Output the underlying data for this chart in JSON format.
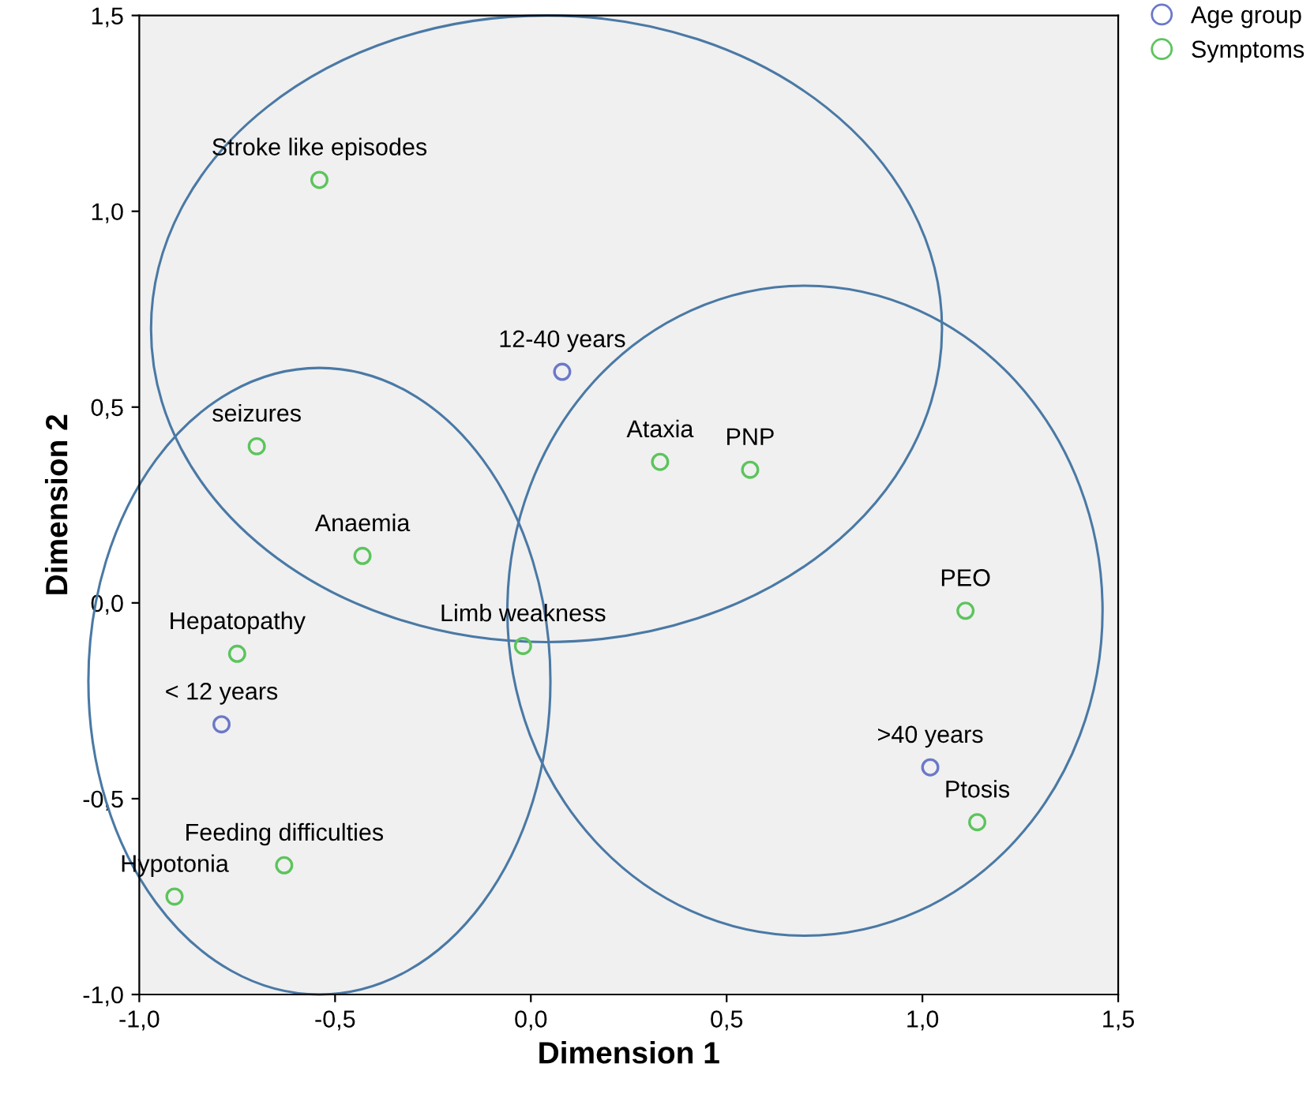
{
  "chart_data": {
    "type": "scatter",
    "xlabel": "Dimension 1",
    "ylabel": "Dimension 2",
    "xlim": [
      -1.0,
      1.5
    ],
    "ylim": [
      -1.0,
      1.5
    ],
    "xticks": [
      {
        "value": -1.0,
        "label": "-1,0"
      },
      {
        "value": -0.5,
        "label": "-0,5"
      },
      {
        "value": 0.0,
        "label": "0,0"
      },
      {
        "value": 0.5,
        "label": "0,5"
      },
      {
        "value": 1.0,
        "label": "1,0"
      },
      {
        "value": 1.5,
        "label": "1,5"
      }
    ],
    "yticks": [
      {
        "value": -1.0,
        "label": "-1,0"
      },
      {
        "value": -0.5,
        "label": "-0,5"
      },
      {
        "value": 0.0,
        "label": "0,0"
      },
      {
        "value": 0.5,
        "label": "0,5"
      },
      {
        "value": 1.0,
        "label": "1,0"
      },
      {
        "value": 1.5,
        "label": "1,5"
      }
    ],
    "grid": false,
    "legend": "top right",
    "marker": "circle",
    "series": [
      {
        "name": "Age group",
        "color": "#6b78c8",
        "x": [
          0.08,
          -0.79,
          1.02
        ],
        "values": [
          0.59,
          -0.31,
          -0.42
        ]
      },
      {
        "name": "Symptoms",
        "color": "#5cc45c",
        "x": [
          -0.54,
          -0.7,
          0.33,
          0.56,
          -0.43,
          1.11,
          -0.02,
          -0.75,
          1.14,
          -0.63,
          -0.91
        ],
        "values": [
          1.08,
          0.4,
          0.36,
          0.34,
          0.12,
          -0.02,
          -0.11,
          -0.13,
          -0.56,
          -0.67,
          -0.75
        ]
      }
    ],
    "annotations": [
      {
        "text": "12-40 years",
        "x": 0.08,
        "y": 0.59
      },
      {
        "text": "< 12 years",
        "x": -0.79,
        "y": -0.31
      },
      {
        "text": ">40 years",
        "x": 1.02,
        "y": -0.42
      },
      {
        "text": "Stroke like episodes",
        "x": -0.54,
        "y": 1.08
      },
      {
        "text": "seizures",
        "x": -0.7,
        "y": 0.4
      },
      {
        "text": "Ataxia",
        "x": 0.33,
        "y": 0.36
      },
      {
        "text": "PNP",
        "x": 0.56,
        "y": 0.34
      },
      {
        "text": "Anaemia",
        "x": -0.43,
        "y": 0.12
      },
      {
        "text": "PEO",
        "x": 1.11,
        "y": -0.02
      },
      {
        "text": "Limb weakness",
        "x": -0.02,
        "y": -0.11
      },
      {
        "text": "Hepatopathy",
        "x": -0.75,
        "y": -0.13
      },
      {
        "text": "Ptosis",
        "x": 1.14,
        "y": -0.56
      },
      {
        "text": "Feeding difficulties",
        "x": -0.63,
        "y": -0.67
      },
      {
        "text": "Hypotonia",
        "x": -0.91,
        "y": -0.75
      }
    ]
  }
}
